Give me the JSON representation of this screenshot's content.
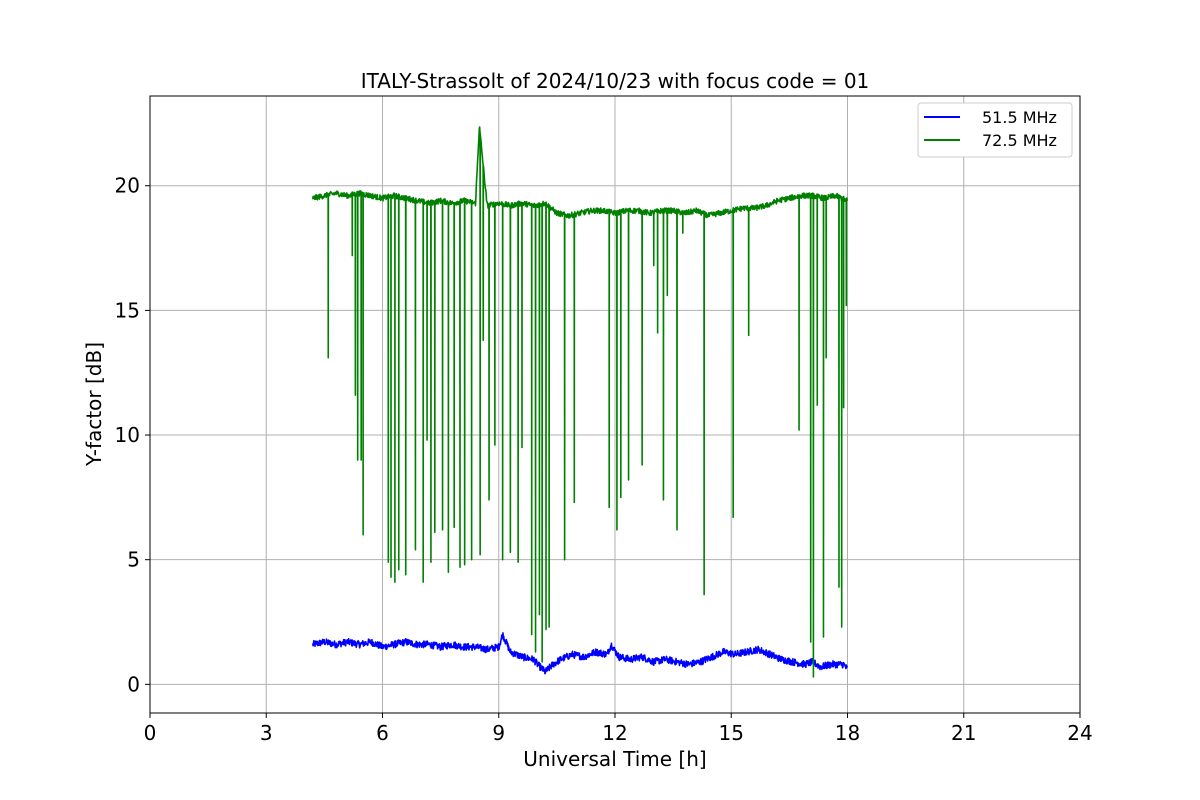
{
  "chart_data": {
    "type": "line",
    "title": "ITALY-Strassolt of 2024/10/23 with focus code = 01",
    "xlabel": "Universal Time [h]",
    "ylabel": "Y-factor [dB]",
    "xlim": [
      0,
      24
    ],
    "ylim": [
      -1.15,
      23.6
    ],
    "xticks": [
      0,
      3,
      6,
      9,
      12,
      15,
      18,
      21,
      24
    ],
    "yticks": [
      0,
      5,
      10,
      15,
      20
    ],
    "grid": true,
    "legend_position": "top-right",
    "series": [
      {
        "name": "51.5 MHz",
        "color": "#0000ff",
        "x": [
          4.2,
          4.5,
          4.8,
          5.1,
          5.4,
          5.7,
          6.0,
          6.3,
          6.6,
          6.9,
          7.2,
          7.5,
          7.8,
          8.1,
          8.4,
          8.7,
          9.0,
          9.1,
          9.3,
          9.6,
          9.9,
          10.0,
          10.2,
          10.4,
          10.6,
          10.9,
          11.2,
          11.5,
          11.8,
          11.9,
          12.1,
          12.4,
          12.7,
          13.0,
          13.3,
          13.6,
          13.9,
          14.2,
          14.5,
          14.8,
          15.1,
          15.4,
          15.7,
          16.0,
          16.3,
          16.6,
          16.9,
          17.1,
          17.3,
          17.6,
          17.9,
          18.0
        ],
        "y": [
          1.6,
          1.7,
          1.6,
          1.7,
          1.6,
          1.7,
          1.5,
          1.6,
          1.7,
          1.6,
          1.6,
          1.5,
          1.6,
          1.5,
          1.5,
          1.4,
          1.5,
          2.0,
          1.3,
          1.1,
          1.0,
          0.8,
          0.5,
          0.8,
          1.0,
          1.2,
          1.1,
          1.3,
          1.2,
          1.6,
          1.1,
          1.0,
          1.1,
          0.9,
          1.0,
          0.9,
          0.8,
          0.9,
          1.1,
          1.3,
          1.2,
          1.3,
          1.4,
          1.2,
          1.0,
          0.9,
          0.8,
          0.9,
          0.7,
          0.8,
          0.8,
          0.6
        ]
      },
      {
        "name": "72.5 MHz",
        "color": "#008000",
        "x": [
          4.2,
          4.5,
          4.8,
          5.1,
          5.4,
          5.7,
          6.0,
          6.3,
          6.6,
          6.9,
          7.2,
          7.5,
          7.8,
          8.1,
          8.4,
          8.5,
          8.7,
          9.0,
          9.3,
          9.6,
          9.9,
          10.2,
          10.5,
          10.8,
          11.1,
          11.4,
          11.7,
          12.0,
          12.3,
          12.6,
          12.9,
          13.2,
          13.5,
          13.8,
          14.1,
          14.4,
          14.7,
          15.0,
          15.3,
          15.6,
          15.9,
          16.2,
          16.5,
          16.8,
          17.1,
          17.4,
          17.7,
          18.0
        ],
        "y": [
          19.5,
          19.6,
          19.7,
          19.6,
          19.7,
          19.6,
          19.5,
          19.6,
          19.5,
          19.4,
          19.3,
          19.4,
          19.3,
          19.4,
          19.3,
          22.4,
          19.2,
          19.3,
          19.2,
          19.3,
          19.2,
          19.3,
          18.9,
          18.8,
          18.9,
          19.0,
          19.0,
          18.9,
          19.0,
          19.0,
          18.9,
          19.0,
          19.0,
          18.9,
          19.0,
          18.8,
          18.9,
          19.0,
          19.1,
          19.1,
          19.2,
          19.4,
          19.5,
          19.6,
          19.6,
          19.5,
          19.6,
          19.4
        ],
        "dropouts": [
          [
            4.6,
            13.1
          ],
          [
            5.22,
            17.2
          ],
          [
            5.3,
            11.6
          ],
          [
            5.36,
            9.0
          ],
          [
            5.45,
            9.0
          ],
          [
            5.5,
            6.0
          ],
          [
            6.15,
            4.9
          ],
          [
            6.22,
            4.3
          ],
          [
            6.32,
            4.1
          ],
          [
            6.42,
            4.6
          ],
          [
            6.6,
            4.4
          ],
          [
            6.85,
            5.4
          ],
          [
            7.05,
            4.1
          ],
          [
            7.15,
            9.8
          ],
          [
            7.25,
            4.9
          ],
          [
            7.35,
            6.1
          ],
          [
            7.55,
            6.2
          ],
          [
            7.7,
            4.5
          ],
          [
            7.85,
            6.3
          ],
          [
            8.0,
            4.7
          ],
          [
            8.12,
            4.8
          ],
          [
            8.3,
            5.0
          ],
          [
            8.52,
            5.2
          ],
          [
            8.6,
            13.8
          ],
          [
            8.75,
            7.4
          ],
          [
            8.9,
            9.6
          ],
          [
            9.1,
            5.0
          ],
          [
            9.3,
            5.3
          ],
          [
            9.5,
            4.9
          ],
          [
            9.6,
            9.5
          ],
          [
            9.85,
            2.0
          ],
          [
            9.95,
            1.3
          ],
          [
            10.05,
            2.8
          ],
          [
            10.12,
            0.9
          ],
          [
            10.22,
            2.2
          ],
          [
            10.3,
            2.3
          ],
          [
            10.7,
            5.0
          ],
          [
            10.95,
            7.3
          ],
          [
            11.85,
            7.1
          ],
          [
            12.05,
            6.2
          ],
          [
            12.15,
            7.5
          ],
          [
            12.35,
            8.2
          ],
          [
            12.7,
            8.8
          ],
          [
            13.0,
            16.8
          ],
          [
            13.1,
            14.1
          ],
          [
            13.25,
            7.4
          ],
          [
            13.35,
            15.6
          ],
          [
            13.6,
            6.2
          ],
          [
            13.75,
            18.1
          ],
          [
            14.3,
            3.6
          ],
          [
            15.05,
            6.7
          ],
          [
            15.45,
            14.0
          ],
          [
            16.75,
            10.2
          ],
          [
            17.05,
            1.7
          ],
          [
            17.12,
            0.3
          ],
          [
            17.22,
            11.2
          ],
          [
            17.38,
            1.9
          ],
          [
            17.45,
            13.1
          ],
          [
            17.78,
            3.9
          ],
          [
            17.85,
            2.3
          ],
          [
            17.9,
            11.1
          ],
          [
            17.97,
            15.2
          ]
        ]
      }
    ]
  }
}
